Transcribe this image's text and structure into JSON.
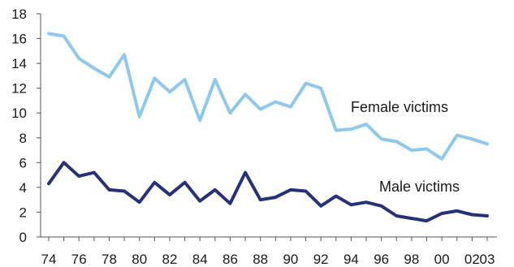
{
  "chart_data": {
    "type": "line",
    "x_tick_labels": [
      "74",
      "76",
      "78",
      "80",
      "82",
      "84",
      "86",
      "88",
      "90",
      "92",
      "94",
      "96",
      "98",
      "00",
      "02",
      "03"
    ],
    "x": [
      1974,
      1975,
      1976,
      1977,
      1978,
      1979,
      1980,
      1981,
      1982,
      1983,
      1984,
      1985,
      1986,
      1987,
      1988,
      1989,
      1990,
      1991,
      1992,
      1993,
      1994,
      1995,
      1996,
      1997,
      1998,
      1999,
      2000,
      2001,
      2002,
      2003
    ],
    "ylim": [
      0,
      18
    ],
    "y_ticks": [
      0,
      2,
      4,
      6,
      8,
      10,
      12,
      14,
      16,
      18
    ],
    "grid": false,
    "series": [
      {
        "name": "Female victims",
        "color": "#8ec9ec",
        "values": [
          16.4,
          16.2,
          14.4,
          13.6,
          12.9,
          14.7,
          9.7,
          12.8,
          11.7,
          12.7,
          9.4,
          12.7,
          10.0,
          11.5,
          10.3,
          10.9,
          10.5,
          12.4,
          12.0,
          8.6,
          8.7,
          9.1,
          7.9,
          7.7,
          7.0,
          7.1,
          6.3,
          8.2,
          7.9,
          7.5
        ]
      },
      {
        "name": "Male victims",
        "color": "#25327a",
        "values": [
          4.3,
          6.0,
          4.9,
          5.2,
          3.8,
          3.7,
          2.8,
          4.4,
          3.4,
          4.4,
          2.9,
          3.8,
          2.7,
          5.2,
          3.0,
          3.2,
          3.8,
          3.7,
          2.5,
          3.3,
          2.6,
          2.8,
          2.5,
          1.7,
          1.5,
          1.3,
          1.9,
          2.1,
          1.8,
          1.7
        ]
      }
    ]
  }
}
